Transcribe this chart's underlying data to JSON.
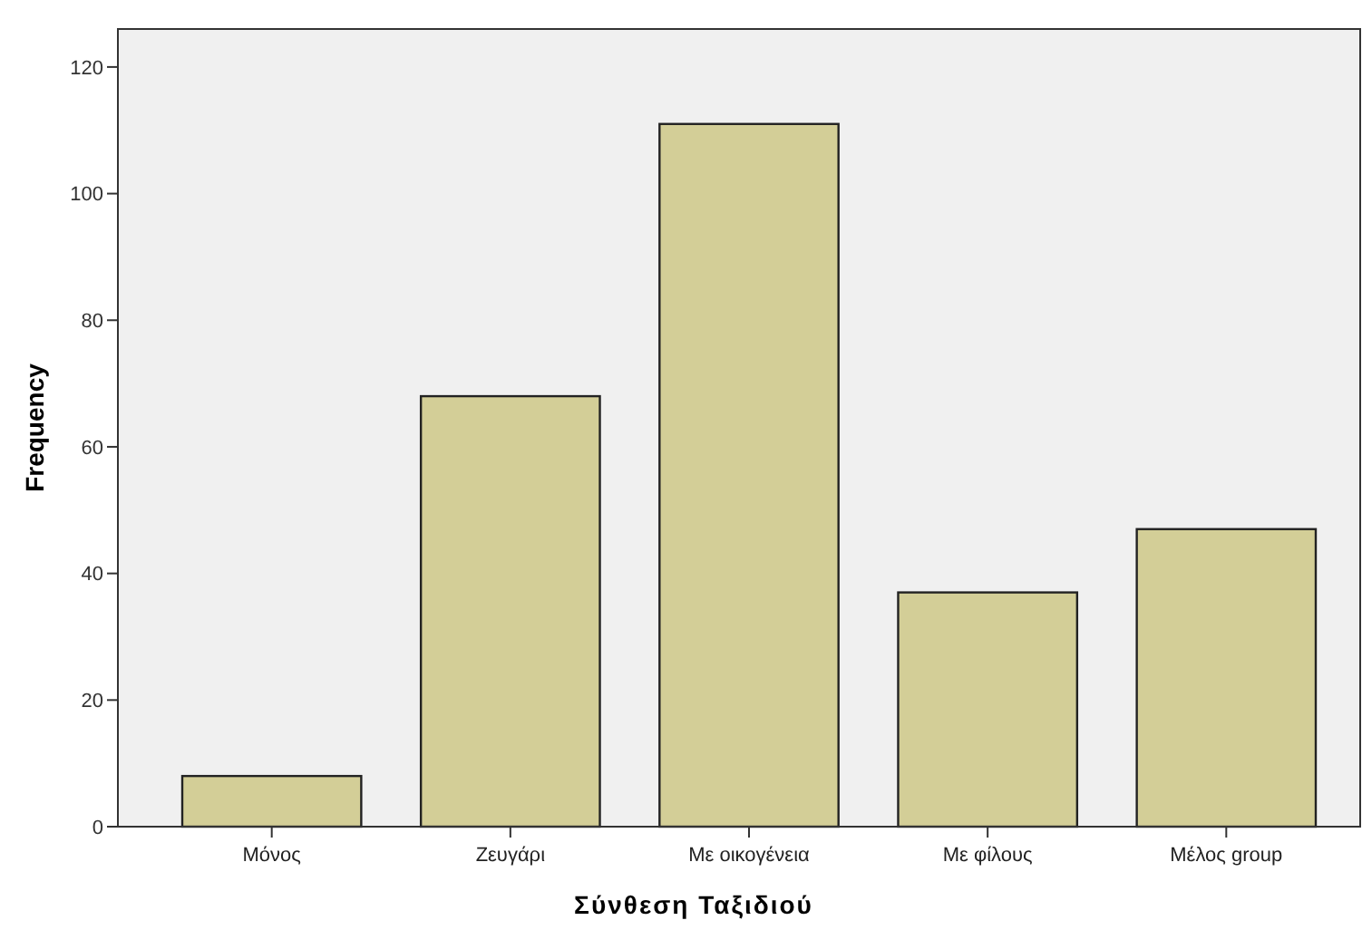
{
  "chart_data": {
    "type": "bar",
    "xlabel": "Σύνθεση Ταξιδιού",
    "ylabel": "Frequency",
    "categories": [
      "Μόνος",
      "Ζευγάρι",
      "Με οικογένεια",
      "Με φίλους",
      "Μέλος group"
    ],
    "values": [
      8,
      68,
      111,
      37,
      47
    ],
    "color": "#d3ce97",
    "ylim": [
      0,
      126
    ],
    "yticks": [
      0,
      20,
      40,
      60,
      80,
      100,
      120
    ],
    "grid": false
  }
}
